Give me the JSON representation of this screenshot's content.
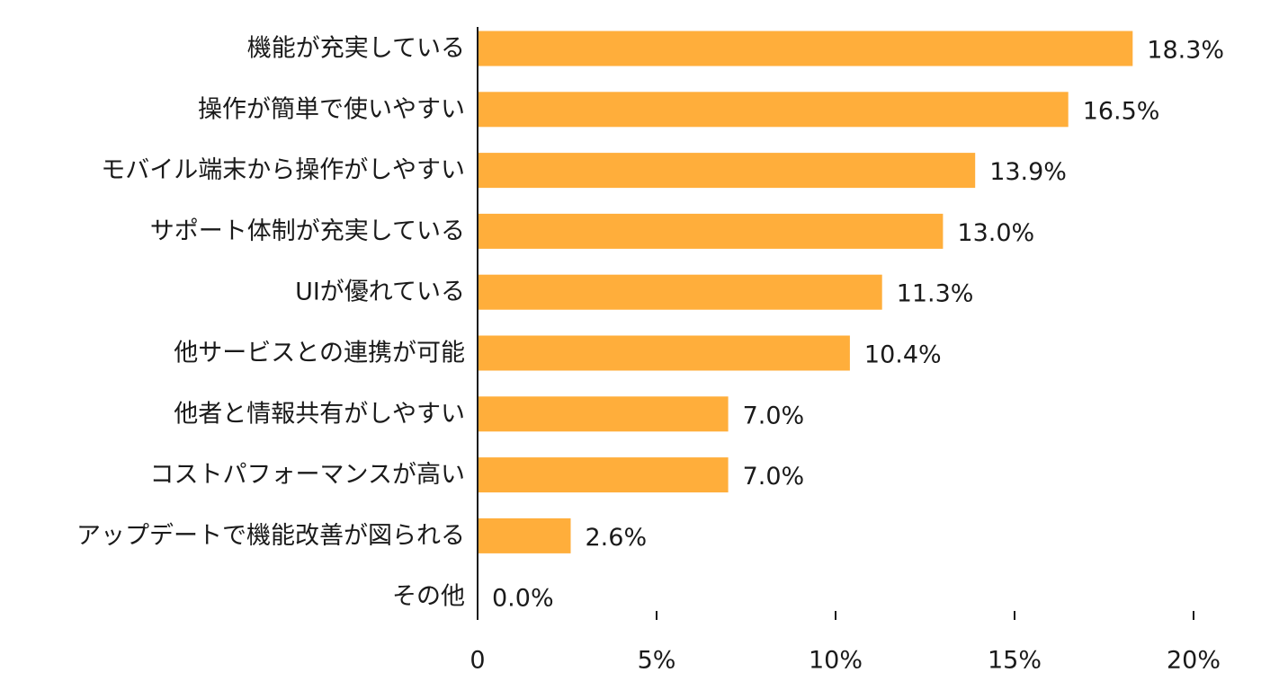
{
  "chart_data": {
    "type": "bar",
    "orientation": "horizontal",
    "categories": [
      "機能が充実している",
      "操作が簡単で使いやすい",
      "モバイル端末から操作がしやすい",
      "サポート体制が充実している",
      "UIが優れている",
      "他サービスとの連携が可能",
      "他者と情報共有がしやすい",
      "コストパフォーマンスが高い",
      "アップデートで機能改善が図られる",
      "その他"
    ],
    "values": [
      18.3,
      16.5,
      13.9,
      13.0,
      11.3,
      10.4,
      7.0,
      7.0,
      2.6,
      0.0
    ],
    "value_labels": [
      "18.3%",
      "16.5%",
      "13.9%",
      "13.0%",
      "11.3%",
      "10.4%",
      "7.0%",
      "7.0%",
      "2.6%",
      "0.0%"
    ],
    "xlim": [
      0,
      20
    ],
    "x_ticks": [
      0,
      5,
      10,
      15,
      20
    ],
    "x_tick_labels": [
      "0",
      "5%",
      "10%",
      "15%",
      "20%"
    ],
    "grid": false,
    "legend": "none",
    "bar_color": "#FFAE3B",
    "axis_color": "#1a1a1a"
  }
}
